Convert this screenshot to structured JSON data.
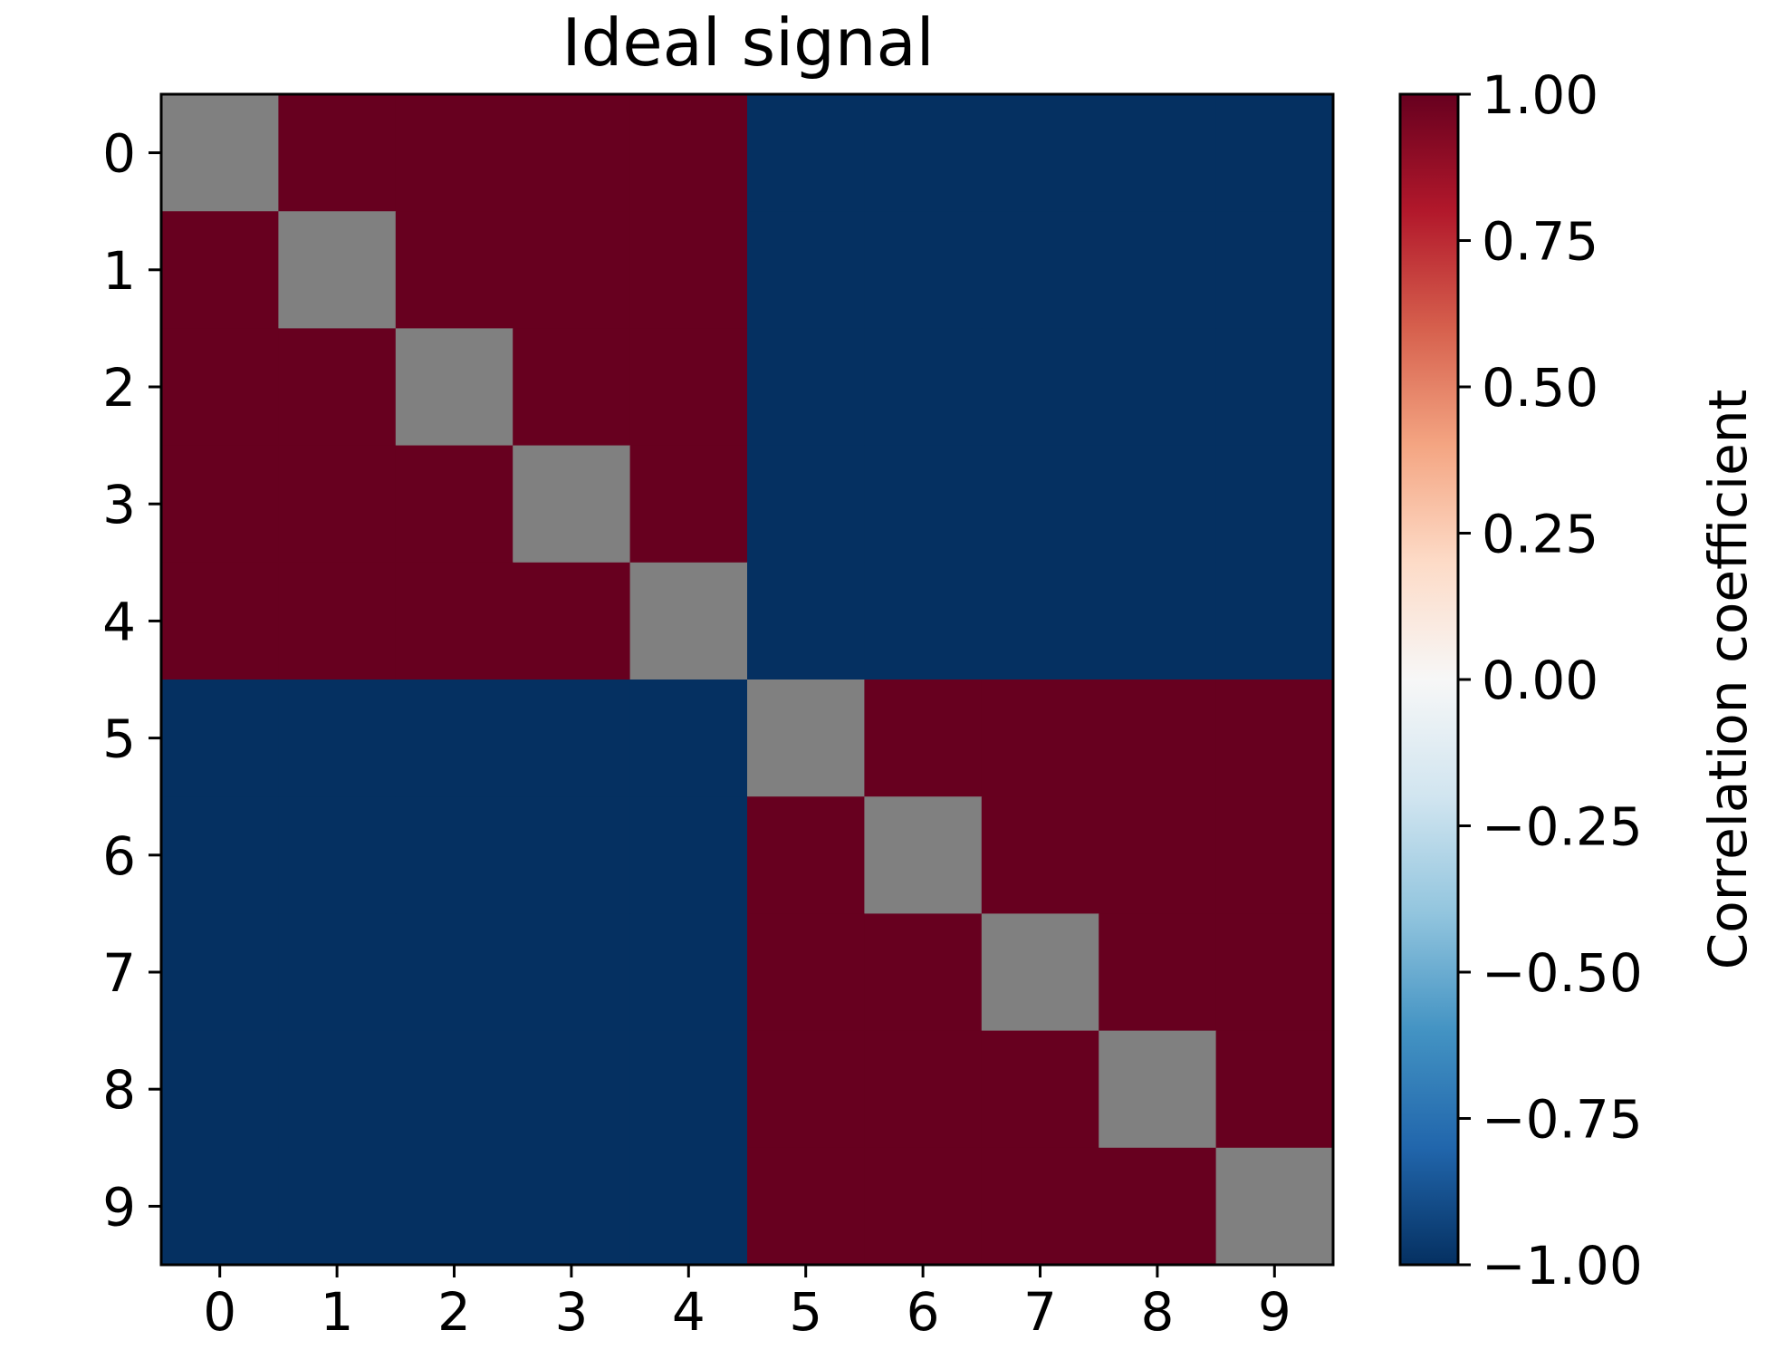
{
  "chart_data": {
    "type": "heatmap",
    "title": "Ideal signal",
    "x_ticks": [
      "0",
      "1",
      "2",
      "3",
      "4",
      "5",
      "6",
      "7",
      "8",
      "9"
    ],
    "y_ticks": [
      "0",
      "1",
      "2",
      "3",
      "4",
      "5",
      "6",
      "7",
      "8",
      "9"
    ],
    "matrix": [
      [
        null,
        1,
        1,
        1,
        1,
        -1,
        -1,
        -1,
        -1,
        -1
      ],
      [
        1,
        null,
        1,
        1,
        1,
        -1,
        -1,
        -1,
        -1,
        -1
      ],
      [
        1,
        1,
        null,
        1,
        1,
        -1,
        -1,
        -1,
        -1,
        -1
      ],
      [
        1,
        1,
        1,
        null,
        1,
        -1,
        -1,
        -1,
        -1,
        -1
      ],
      [
        1,
        1,
        1,
        1,
        null,
        -1,
        -1,
        -1,
        -1,
        -1
      ],
      [
        -1,
        -1,
        -1,
        -1,
        -1,
        null,
        1,
        1,
        1,
        1
      ],
      [
        -1,
        -1,
        -1,
        -1,
        -1,
        1,
        null,
        1,
        1,
        1
      ],
      [
        -1,
        -1,
        -1,
        -1,
        -1,
        1,
        1,
        null,
        1,
        1
      ],
      [
        -1,
        -1,
        -1,
        -1,
        -1,
        1,
        1,
        1,
        null,
        1
      ],
      [
        -1,
        -1,
        -1,
        -1,
        -1,
        1,
        1,
        1,
        1,
        null
      ]
    ],
    "missing_color": "#808080",
    "colormap": "RdBu_r",
    "vmin": -1.0,
    "vmax": 1.0,
    "colorbar": {
      "label": "Correlation coefficient",
      "ticks": [
        1.0,
        0.75,
        0.5,
        0.25,
        0.0,
        -0.25,
        -0.5,
        -0.75,
        -1.0
      ],
      "tick_labels": [
        "1.00",
        "0.75",
        "0.50",
        "0.25",
        "0.00",
        "−0.25",
        "−0.50",
        "−0.75",
        "−1.00"
      ]
    }
  }
}
